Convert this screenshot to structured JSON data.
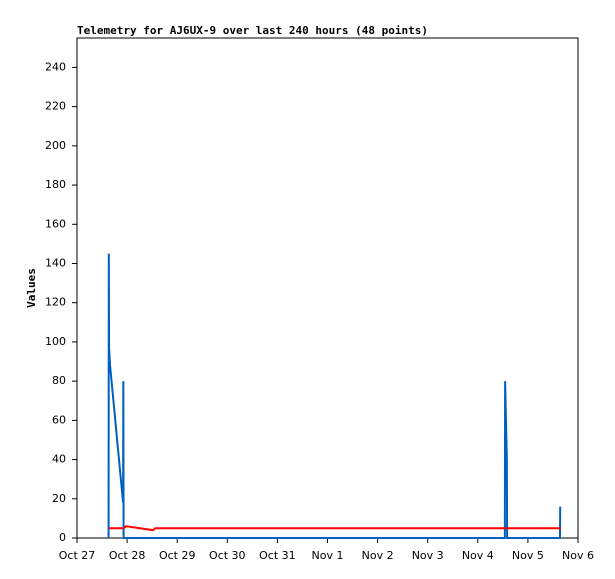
{
  "chart_data": {
    "type": "line",
    "title": "Telemetry for AJ6UX-9 over last 240 hours (48 points)",
    "ylabel": "Values",
    "xlim": [
      0,
      10
    ],
    "xticks": [
      {
        "value": 0,
        "label": "Oct 27"
      },
      {
        "value": 1,
        "label": "Oct 28"
      },
      {
        "value": 2,
        "label": "Oct 29"
      },
      {
        "value": 3,
        "label": "Oct 30"
      },
      {
        "value": 4,
        "label": "Oct 31"
      },
      {
        "value": 5,
        "label": "Nov 1"
      },
      {
        "value": 6,
        "label": "Nov 2"
      },
      {
        "value": 7,
        "label": "Nov 3"
      },
      {
        "value": 8,
        "label": "Nov 4"
      },
      {
        "value": 9,
        "label": "Nov 5"
      },
      {
        "value": 10,
        "label": "Nov 6"
      }
    ],
    "ylim": [
      0,
      255
    ],
    "yticks": [
      0,
      20,
      40,
      60,
      80,
      100,
      120,
      140,
      160,
      180,
      200,
      220,
      240
    ],
    "grid": false,
    "series": [
      {
        "color": "#0060c0",
        "x": [
          0.63,
          0.635,
          0.64,
          0.66,
          0.92,
          0.925,
          0.93,
          8.54,
          8.545,
          8.58,
          8.585,
          9.64,
          9.645
        ],
        "values": [
          0,
          145,
          97,
          88,
          18,
          80,
          0,
          0,
          80,
          40,
          0,
          0,
          16
        ]
      },
      {
        "color": "#ff0000",
        "x": [
          0.63,
          0.93,
          0.98,
          1.52,
          1.56,
          9.66
        ],
        "values": [
          5,
          5,
          6,
          4,
          5,
          5
        ]
      }
    ]
  }
}
